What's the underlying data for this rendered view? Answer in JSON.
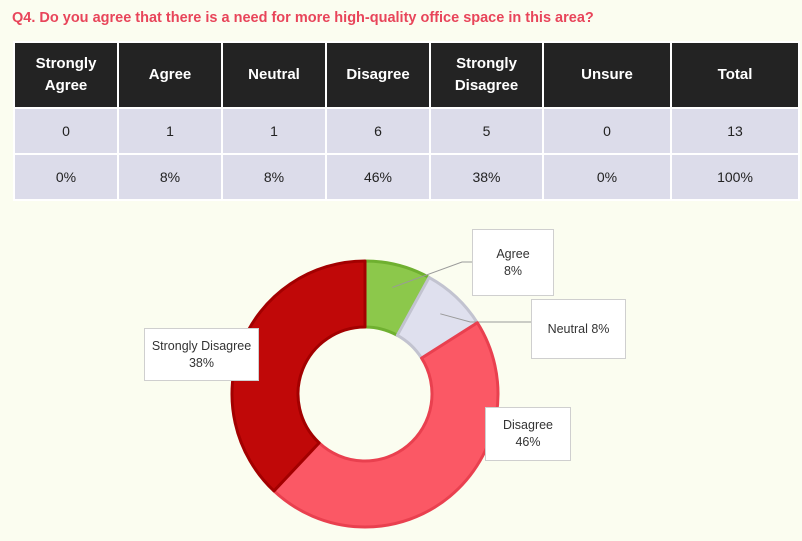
{
  "question": "Q4. Do you agree that there is a need for more high-quality office space in this area?",
  "table": {
    "headers": [
      "Strongly Agree",
      "Agree",
      "Neutral",
      "Disagree",
      "Strongly Disagree",
      "Unsure",
      "Total"
    ],
    "counts": [
      "0",
      "1",
      "1",
      "6",
      "5",
      "0",
      "13"
    ],
    "percents": [
      "0%",
      "8%",
      "8%",
      "46%",
      "38%",
      "0%",
      "100%"
    ]
  },
  "chart_data": {
    "type": "pie",
    "donut": true,
    "slices": [
      {
        "label": "Agree",
        "value": 8,
        "color": "#8cc84b",
        "edge": "#6fb030",
        "callout": "Agree\n8%"
      },
      {
        "label": "Neutral",
        "value": 8,
        "color": "#dfe0ee",
        "edge": "#c2c3d0",
        "callout": "Neutral 8%"
      },
      {
        "label": "Disagree",
        "value": 46,
        "color": "#fb5865",
        "edge": "#e9404f",
        "callout": "Disagree\n46%"
      },
      {
        "label": "Strongly Disagree",
        "value": 38,
        "color": "#c00808",
        "edge": "#a30000",
        "callout": "Strongly Disagree\n38%"
      }
    ]
  }
}
